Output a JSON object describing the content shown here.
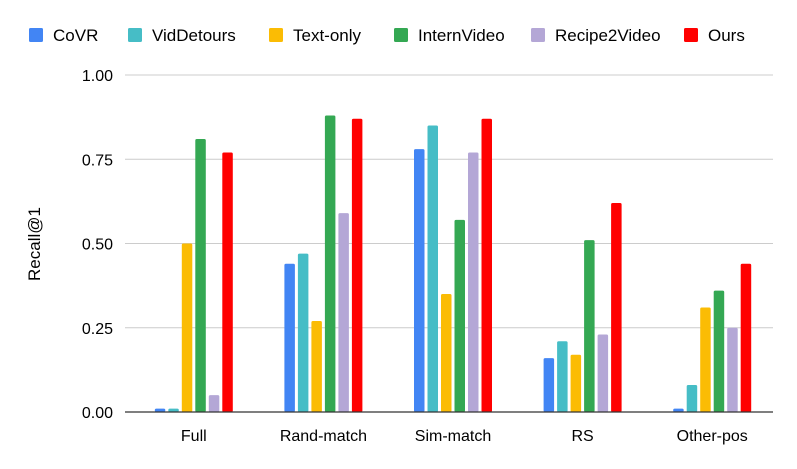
{
  "chart_data": {
    "type": "bar",
    "title": "",
    "xlabel": "",
    "ylabel": "Recall@1",
    "ylim": [
      0,
      1
    ],
    "yticks": [
      "0.00",
      "0.25",
      "0.50",
      "0.75",
      "1.00"
    ],
    "grid": "horizontal",
    "legend_position": "top",
    "categories": [
      "Full",
      "Rand-match",
      "Sim-match",
      "RS",
      "Other-pos"
    ],
    "series": [
      {
        "name": "CoVR",
        "color": "#4285f4",
        "values": [
          0.01,
          0.44,
          0.78,
          0.16,
          0.01
        ]
      },
      {
        "name": "VidDetours",
        "color": "#46bdc6",
        "values": [
          0.01,
          0.47,
          0.85,
          0.21,
          0.08
        ]
      },
      {
        "name": "Text-only",
        "color": "#fbbc04",
        "values": [
          0.5,
          0.27,
          0.35,
          0.17,
          0.31
        ]
      },
      {
        "name": "InternVideo",
        "color": "#34a853",
        "values": [
          0.81,
          0.88,
          0.57,
          0.51,
          0.36
        ]
      },
      {
        "name": "Recipe2Video",
        "color": "#b4a7d6",
        "values": [
          0.05,
          0.59,
          0.77,
          0.23,
          0.25
        ]
      },
      {
        "name": "Ours",
        "color": "#ff0000",
        "values": [
          0.77,
          0.87,
          0.87,
          0.62,
          0.44
        ]
      }
    ]
  }
}
